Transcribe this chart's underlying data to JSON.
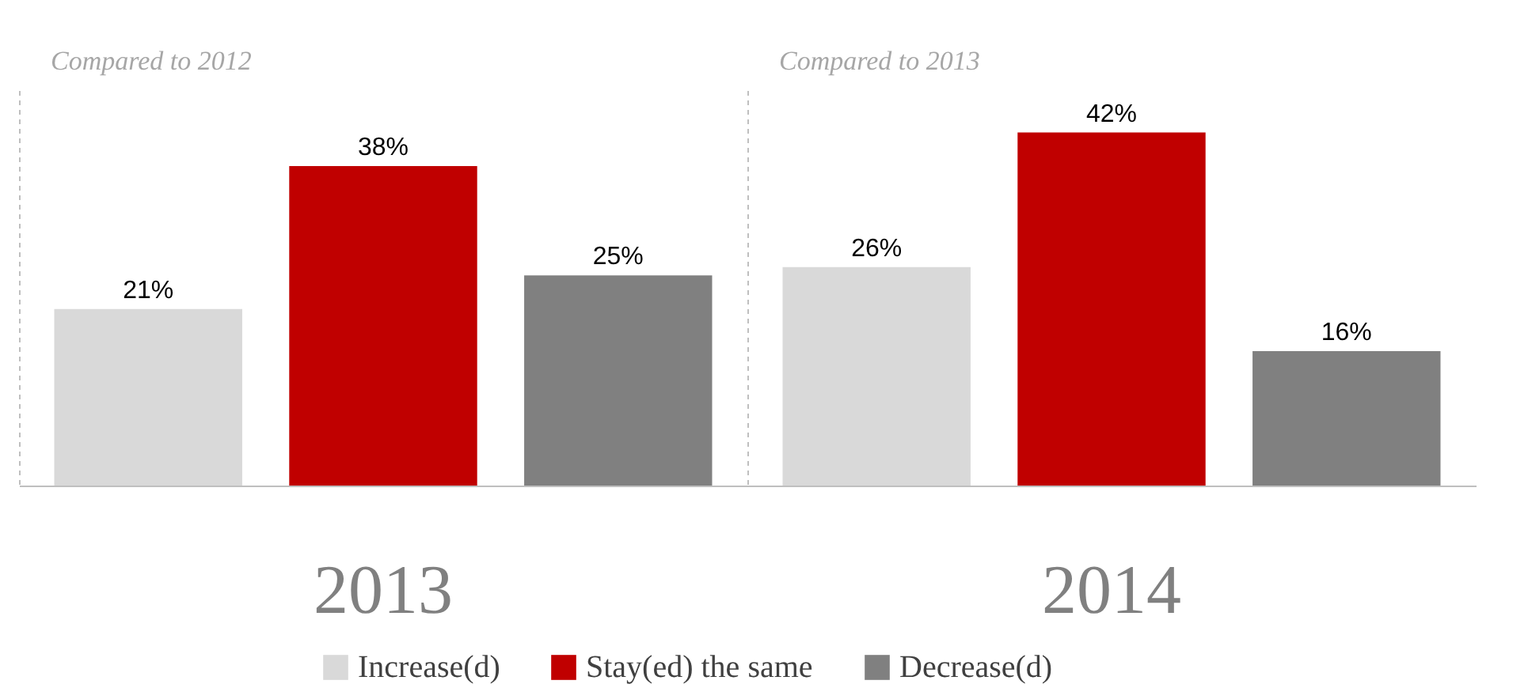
{
  "chart_data": {
    "type": "bar",
    "categories": [
      "2013",
      "2014"
    ],
    "series": [
      {
        "name": "Increase(d)",
        "color": "#d9d9d9",
        "values": [
          21,
          26
        ],
        "value_labels": [
          "21%",
          "26%"
        ]
      },
      {
        "name": "Stay(ed) the same",
        "color": "#c00000",
        "values": [
          38,
          42
        ],
        "value_labels": [
          "38%",
          "42%"
        ]
      },
      {
        "name": "Decrease(d)",
        "color": "#808080",
        "values": [
          25,
          16
        ],
        "value_labels": [
          "25%",
          "16%"
        ]
      }
    ],
    "annotations": [
      "Compared to 2012",
      "Compared to 2013"
    ],
    "grid": "x",
    "legend": "bottom"
  }
}
